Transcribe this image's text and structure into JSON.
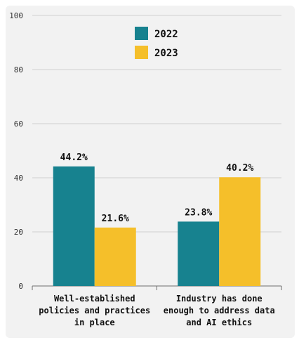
{
  "chart_data": {
    "type": "bar",
    "categories": [
      [
        "Well-established",
        "policies and practices",
        "in place"
      ],
      [
        "Industry has done",
        "enough to address data",
        "and AI ethics"
      ]
    ],
    "series": [
      {
        "name": "2022",
        "values": [
          44.2,
          23.8
        ],
        "labels": [
          "44.2%",
          "23.8%"
        ]
      },
      {
        "name": "2023",
        "values": [
          21.6,
          40.2
        ],
        "labels": [
          "21.6%",
          "40.2%"
        ]
      }
    ],
    "yticks": [
      "0",
      "20",
      "40",
      "60",
      "80",
      "100"
    ],
    "ylim": [
      0,
      100
    ],
    "grid": true,
    "legend_position": "top-center",
    "colors": {
      "background": "#f2f2f2",
      "series": [
        "#17828f",
        "#f5bf2a"
      ],
      "grid": "#d0d0d0",
      "axis": "#6f6f6f",
      "text": "#111111",
      "tick_text": "#333333"
    }
  }
}
